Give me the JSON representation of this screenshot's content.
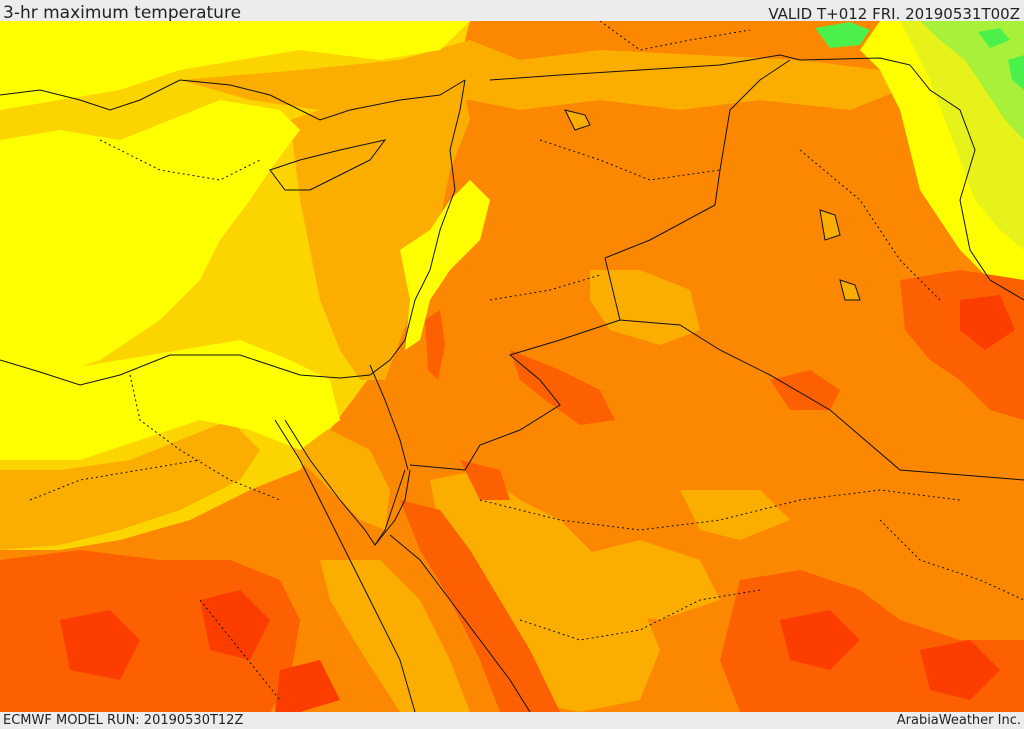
{
  "header": {
    "title": "3-hr maximum temperature",
    "valid": "VALID T+012 FRI. 20190531T00Z"
  },
  "footer": {
    "model_run": "ECMWF MODEL RUN: 20190530T12Z",
    "credit": "ArabiaWeather Inc."
  },
  "map": {
    "field": "3-hr maximum temperature",
    "palette": {
      "green": "#4cf04a",
      "light_green": "#a8f03a",
      "yellow_green": "#e6f21a",
      "yellow": "#ffff00",
      "gold": "#fcd400",
      "light_orange": "#fcae00",
      "orange": "#fc8700",
      "dark_orange": "#fc6000",
      "red": "#fc3d00",
      "borders": "#111111"
    }
  }
}
